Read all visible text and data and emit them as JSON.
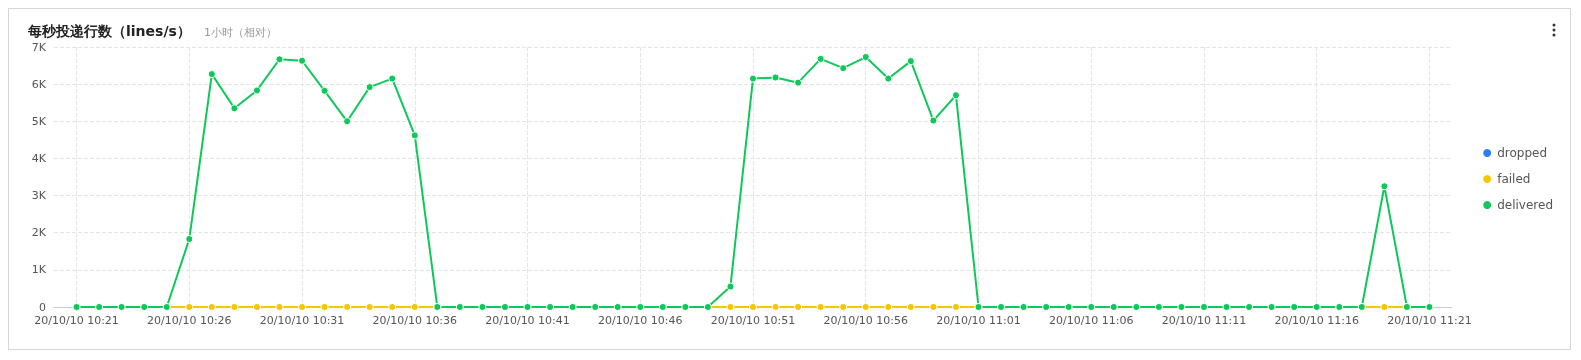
{
  "chart_data": {
    "type": "line",
    "title": "每秒投递行数（lines/s）",
    "subtitle": "1小时（相对）",
    "x": [
      "--10-10T10:21",
      "--10-10T10:22",
      "--10-10T10:23",
      "--10-10T10:24",
      "--10-10T10:25",
      "--10-10T10:26",
      "--10-10T10:27",
      "--10-10T10:28",
      "--10-10T10:29",
      "--10-10T10:30",
      "--10-10T10:31",
      "--10-10T10:32",
      "--10-10T10:33",
      "--10-10T10:34",
      "--10-10T10:35",
      "--10-10T10:36",
      "--10-10T10:37",
      "--10-10T10:38",
      "--10-10T10:39",
      "--10-10T10:40",
      "--10-10T10:41",
      "--10-10T10:42",
      "--10-10T10:43",
      "--10-10T10:44",
      "--10-10T10:45",
      "--10-10T10:46",
      "--10-10T10:47",
      "--10-10T10:48",
      "--10-10T10:49",
      "--10-10T10:50",
      "--10-10T10:51",
      "--10-10T10:52",
      "--10-10T10:53",
      "--10-10T10:54",
      "--10-10T10:55",
      "--10-10T10:56",
      "--10-10T10:57",
      "--10-10T10:58",
      "--10-10T10:59",
      "--10-10T11:00",
      "--10-10T11:01",
      "--10-10T11:02",
      "--10-10T11:03",
      "--10-10T11:04",
      "--10-10T11:05",
      "--10-10T11:06",
      "--10-10T11:07",
      "--10-10T11:08",
      "--10-10T11:09",
      "--10-10T11:10",
      "--10-10T11:11",
      "--10-10T11:12",
      "--10-10T11:13",
      "--10-10T11:14",
      "--10-10T11:15",
      "--10-10T11:16",
      "--10-10T11:17",
      "--10-10T11:18",
      "--10-10T11:19",
      "--10-10T11:20",
      "--10-10T11:21"
    ],
    "series": [
      {
        "name": "dropped",
        "color": "#2f7cf6",
        "values": [
          null,
          null,
          null,
          null,
          null,
          null,
          null,
          null,
          null,
          null,
          null,
          null,
          null,
          null,
          null,
          null,
          null,
          null,
          null,
          null,
          null,
          null,
          null,
          null,
          null,
          null,
          null,
          null,
          null,
          null,
          null,
          null,
          null,
          null,
          null,
          null,
          null,
          null,
          null,
          null,
          null,
          null,
          null,
          null,
          null,
          null,
          null,
          null,
          null,
          null,
          null,
          null,
          null,
          null,
          null,
          null,
          null,
          null,
          null,
          null,
          null
        ]
      },
      {
        "name": "failed",
        "color": "#f7c600",
        "values": [
          null,
          null,
          null,
          null,
          0,
          0,
          0,
          0,
          0,
          0,
          0,
          0,
          0,
          0,
          0,
          0,
          0,
          null,
          null,
          null,
          null,
          null,
          null,
          null,
          null,
          null,
          null,
          null,
          0,
          0,
          0,
          0,
          0,
          0,
          0,
          0,
          0,
          0,
          0,
          0,
          0,
          null,
          null,
          null,
          null,
          null,
          null,
          null,
          null,
          null,
          null,
          null,
          null,
          null,
          null,
          null,
          null,
          0,
          0,
          0,
          null
        ]
      },
      {
        "name": "delivered",
        "color": "#0ec95a",
        "values": [
          0,
          0,
          0,
          0,
          0,
          1830,
          6270,
          5350,
          5830,
          6670,
          6630,
          5820,
          5000,
          5920,
          6150,
          4620,
          0,
          0,
          0,
          0,
          0,
          0,
          0,
          0,
          0,
          0,
          0,
          0,
          0,
          550,
          6150,
          6180,
          6040,
          6680,
          6430,
          6730,
          6150,
          6620,
          5020,
          5700,
          0,
          0,
          0,
          0,
          0,
          0,
          0,
          0,
          0,
          0,
          0,
          0,
          0,
          0,
          0,
          0,
          0,
          0,
          3250,
          0,
          0
        ]
      }
    ],
    "xlim": [
      "--10-10T10:20",
      "--10-10T11:22"
    ],
    "xticks": [
      {
        "value": "--10-10T10:21",
        "label": "20/10/10 10:21"
      },
      {
        "value": "--10-10T10:26",
        "label": "20/10/10 10:26"
      },
      {
        "value": "--10-10T10:31",
        "label": "20/10/10 10:31"
      },
      {
        "value": "--10-10T10:36",
        "label": "20/10/10 10:36"
      },
      {
        "value": "--10-10T10:41",
        "label": "20/10/10 10:41"
      },
      {
        "value": "--10-10T10:46",
        "label": "20/10/10 10:46"
      },
      {
        "value": "--10-10T10:51",
        "label": "20/10/10 10:51"
      },
      {
        "value": "--10-10T10:56",
        "label": "20/10/10 10:56"
      },
      {
        "value": "--10-10T11:01",
        "label": "20/10/10 11:01"
      },
      {
        "value": "--10-10T11:06",
        "label": "20/10/10 11:06"
      },
      {
        "value": "--10-10T11:11",
        "label": "20/10/10 11:11"
      },
      {
        "value": "--10-10T11:16",
        "label": "20/10/10 11:16"
      },
      {
        "value": "--10-10T11:21",
        "label": "20/10/10 11:21"
      }
    ],
    "ylim": [
      0,
      7000
    ],
    "yticks": [
      0,
      {
        "value": 1000,
        "label": "1K"
      },
      {
        "value": 2000,
        "label": "2K"
      },
      {
        "value": 3000,
        "label": "3K"
      },
      {
        "value": 4000,
        "label": "4K"
      },
      {
        "value": 5000,
        "label": "5K"
      },
      {
        "value": 6000,
        "label": "6K"
      },
      {
        "value": 7000,
        "label": "7K"
      }
    ],
    "grid": true,
    "legend": "right",
    "marker": "circle",
    "line_style": "solid"
  }
}
